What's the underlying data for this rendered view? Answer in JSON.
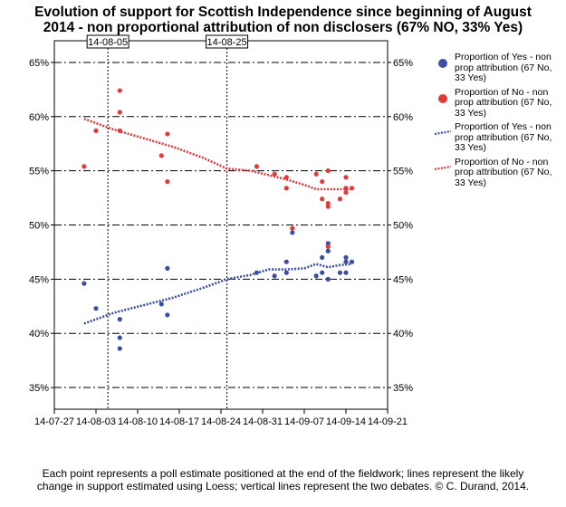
{
  "title_lines": [
    "Evolution of support for Scottish Independence since beginning of August",
    "2014 - non proportional attribution of non disclosers (67% NO, 33% Yes)"
  ],
  "footnote_lines": [
    "Each point represents a poll estimate positioned at the end of the fieldwork; lines represent the likely",
    "change in support estimated using Loess; vertical lines represent the two debates. © C. Durand, 2014."
  ],
  "legend": [
    {
      "label": "Proportion of Yes - non prop attribution (67 No, 33 Yes)",
      "kind": "marker",
      "color": "#3a4fa0"
    },
    {
      "label": "Proportion of No - non prop attribution (67 No, 33 Yes)",
      "kind": "marker",
      "color": "#e03a3a"
    },
    {
      "label": "Proportion of Yes - non prop attribution (67 No, 33 Yes)",
      "kind": "line",
      "color": "#3a4fa0"
    },
    {
      "label": "Proportion of No - non prop attribution (67 No, 33 Yes)",
      "kind": "line",
      "color": "#e03a3a"
    }
  ],
  "chart_data": {
    "type": "scatter",
    "x_axis": {
      "type": "date",
      "range": [
        "2014-07-27",
        "2014-09-21"
      ],
      "ticks": [
        "14-07-27",
        "14-08-03",
        "14-08-10",
        "14-08-17",
        "14-08-24",
        "14-08-31",
        "14-09-07",
        "14-09-14",
        "14-09-21"
      ]
    },
    "y_axis": {
      "range": [
        33,
        67
      ],
      "ticks": [
        35,
        40,
        45,
        50,
        55,
        60,
        65
      ],
      "tick_suffix": "%",
      "both_sides": true
    },
    "grid": "horizontal dash-dot",
    "debates": [
      {
        "date": "2014-08-05",
        "label": "14-08-05"
      },
      {
        "date": "2014-08-25",
        "label": "14-08-25"
      }
    ],
    "series": [
      {
        "name": "Proportion of Yes - non prop attribution (67 No, 33 Yes)",
        "kind": "points",
        "color": "#3a4fa0",
        "points": [
          [
            "2014-08-01",
            44.6
          ],
          [
            "2014-08-03",
            42.3
          ],
          [
            "2014-08-07",
            41.3
          ],
          [
            "2014-08-07",
            39.6
          ],
          [
            "2014-08-07",
            38.6
          ],
          [
            "2014-08-14",
            42.7
          ],
          [
            "2014-08-15",
            46.0
          ],
          [
            "2014-08-15",
            41.7
          ],
          [
            "2014-08-30",
            45.6
          ],
          [
            "2014-09-02",
            45.3
          ],
          [
            "2014-09-04",
            46.6
          ],
          [
            "2014-09-04",
            45.6
          ],
          [
            "2014-09-05",
            49.3
          ],
          [
            "2014-09-09",
            45.3
          ],
          [
            "2014-09-10",
            47.0
          ],
          [
            "2014-09-10",
            45.6
          ],
          [
            "2014-09-11",
            48.3
          ],
          [
            "2014-09-11",
            47.6
          ],
          [
            "2014-09-11",
            45.0
          ],
          [
            "2014-09-13",
            45.6
          ],
          [
            "2014-09-14",
            47.0
          ],
          [
            "2014-09-14",
            46.6
          ],
          [
            "2014-09-14",
            45.6
          ],
          [
            "2014-09-15",
            46.6
          ]
        ]
      },
      {
        "name": "Proportion of No - non prop attribution (67 No, 33 Yes)",
        "kind": "points",
        "color": "#e03a3a",
        "points": [
          [
            "2014-08-01",
            55.4
          ],
          [
            "2014-08-03",
            58.7
          ],
          [
            "2014-08-07",
            62.4
          ],
          [
            "2014-08-07",
            60.4
          ],
          [
            "2014-08-07",
            58.7
          ],
          [
            "2014-08-14",
            56.4
          ],
          [
            "2014-08-15",
            58.4
          ],
          [
            "2014-08-15",
            54.0
          ],
          [
            "2014-08-30",
            55.4
          ],
          [
            "2014-09-02",
            54.7
          ],
          [
            "2014-09-04",
            54.4
          ],
          [
            "2014-09-04",
            53.4
          ],
          [
            "2014-09-05",
            49.7
          ],
          [
            "2014-09-09",
            54.7
          ],
          [
            "2014-09-10",
            54.0
          ],
          [
            "2014-09-10",
            52.4
          ],
          [
            "2014-09-11",
            55.0
          ],
          [
            "2014-09-11",
            52.0
          ],
          [
            "2014-09-11",
            51.7
          ],
          [
            "2014-09-11",
            48.0
          ],
          [
            "2014-09-13",
            52.4
          ],
          [
            "2014-09-14",
            54.4
          ],
          [
            "2014-09-14",
            53.4
          ],
          [
            "2014-09-14",
            53.0
          ],
          [
            "2014-09-15",
            53.4
          ]
        ]
      },
      {
        "name": "Proportion of Yes - non prop attribution (67 No, 33 Yes)",
        "kind": "loess",
        "color": "#3a4fa0",
        "points": [
          [
            "2014-08-01",
            40.9
          ],
          [
            "2014-08-06",
            41.9
          ],
          [
            "2014-08-11",
            42.6
          ],
          [
            "2014-08-16",
            43.3
          ],
          [
            "2014-08-21",
            44.2
          ],
          [
            "2014-08-25",
            45.0
          ],
          [
            "2014-08-29",
            45.4
          ],
          [
            "2014-09-01",
            45.9
          ],
          [
            "2014-09-04",
            45.9
          ],
          [
            "2014-09-07",
            46.0
          ],
          [
            "2014-09-09",
            46.4
          ],
          [
            "2014-09-11",
            46.1
          ],
          [
            "2014-09-13",
            46.3
          ],
          [
            "2014-09-15",
            46.4
          ]
        ]
      },
      {
        "name": "Proportion of No - non prop attribution (67 No, 33 Yes)",
        "kind": "loess",
        "color": "#e03a3a",
        "points": [
          [
            "2014-08-01",
            59.8
          ],
          [
            "2014-08-06",
            58.8
          ],
          [
            "2014-08-11",
            58.0
          ],
          [
            "2014-08-16",
            57.2
          ],
          [
            "2014-08-21",
            56.2
          ],
          [
            "2014-08-25",
            55.2
          ],
          [
            "2014-08-29",
            55.0
          ],
          [
            "2014-09-01",
            54.6
          ],
          [
            "2014-09-04",
            54.2
          ],
          [
            "2014-09-07",
            53.7
          ],
          [
            "2014-09-09",
            53.3
          ],
          [
            "2014-09-11",
            53.3
          ],
          [
            "2014-09-13",
            53.3
          ],
          [
            "2014-09-15",
            53.3
          ]
        ]
      }
    ]
  }
}
